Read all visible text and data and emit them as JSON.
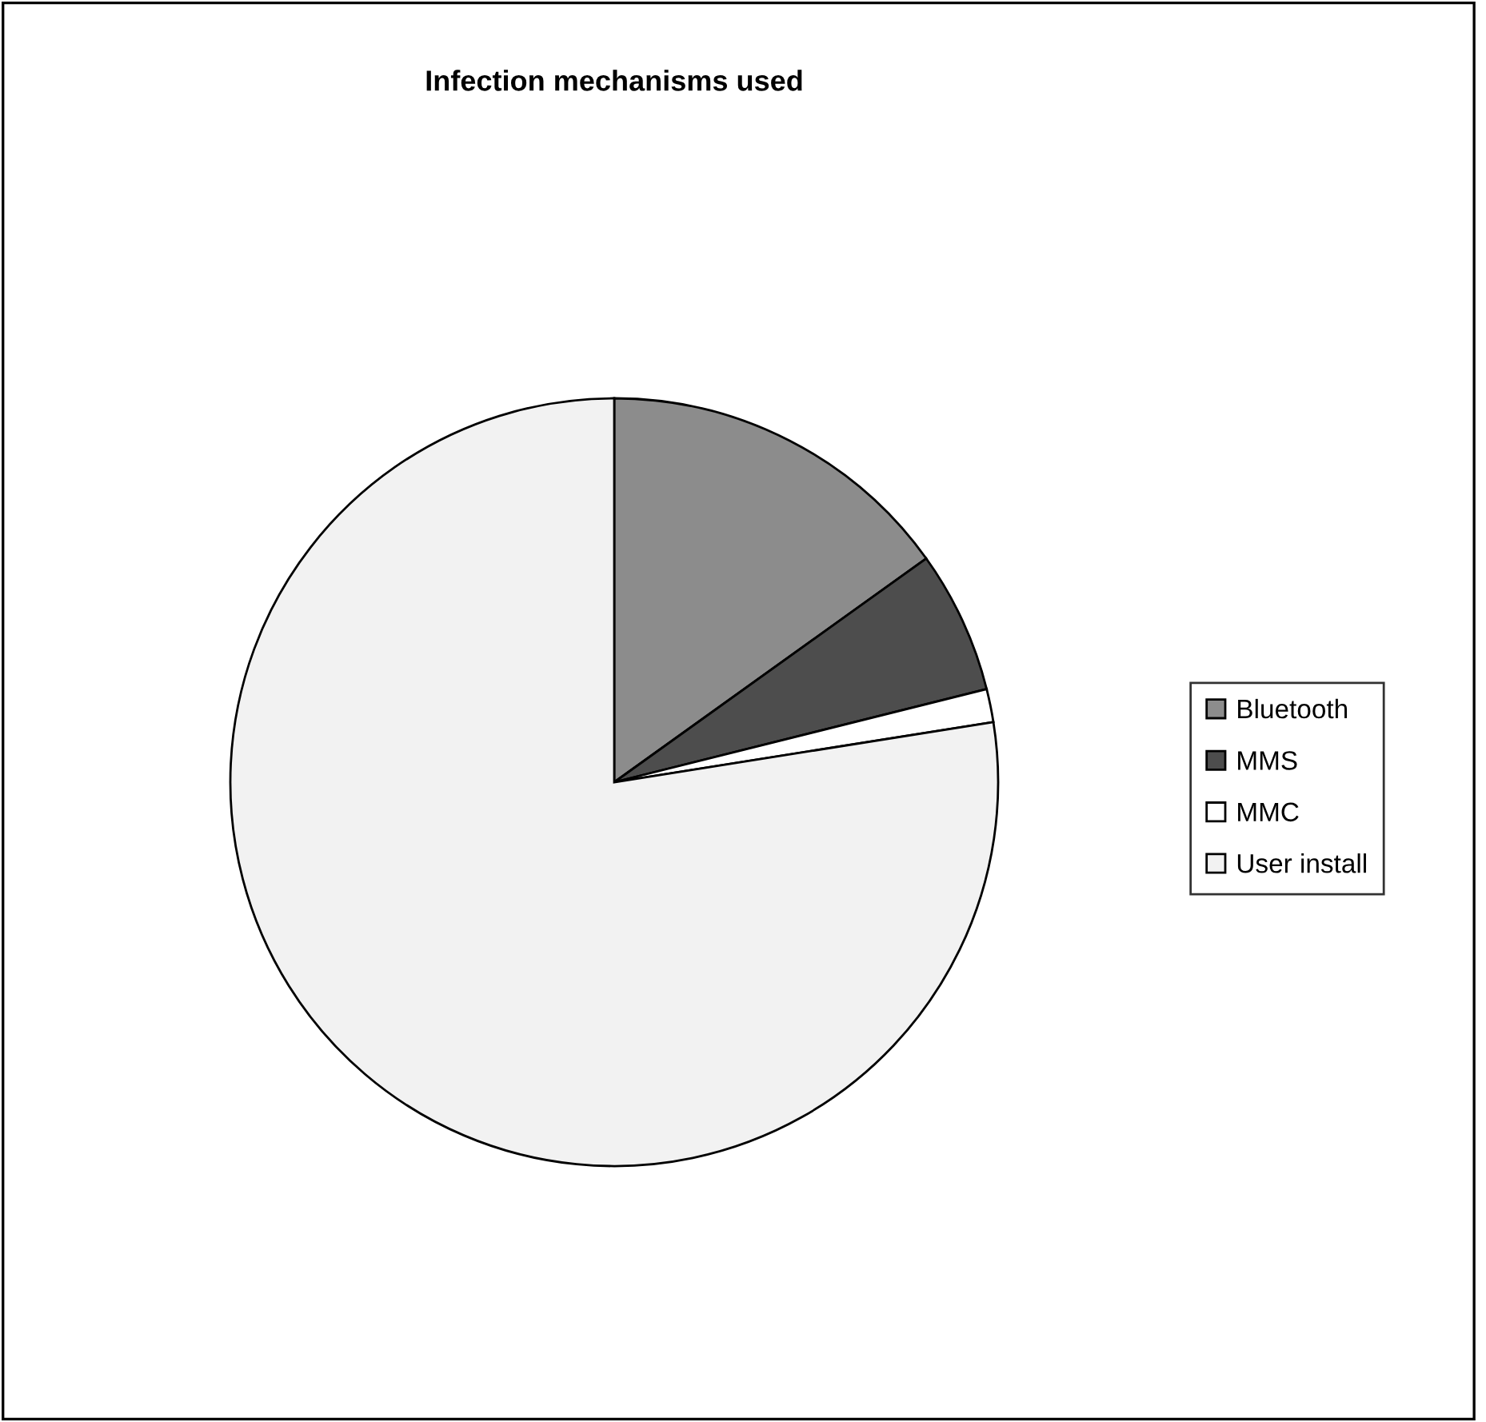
{
  "chart_data": {
    "type": "pie",
    "title": "Infection mechanisms used",
    "categories": [
      "Bluetooth",
      "MMS",
      "MMC",
      "User install"
    ],
    "values": [
      15.1,
      6.0,
      1.4,
      77.5
    ],
    "colors": [
      "#8c8c8c",
      "#4d4d4d",
      "#ffffff",
      "#f2f2f2"
    ],
    "legend": "right"
  }
}
